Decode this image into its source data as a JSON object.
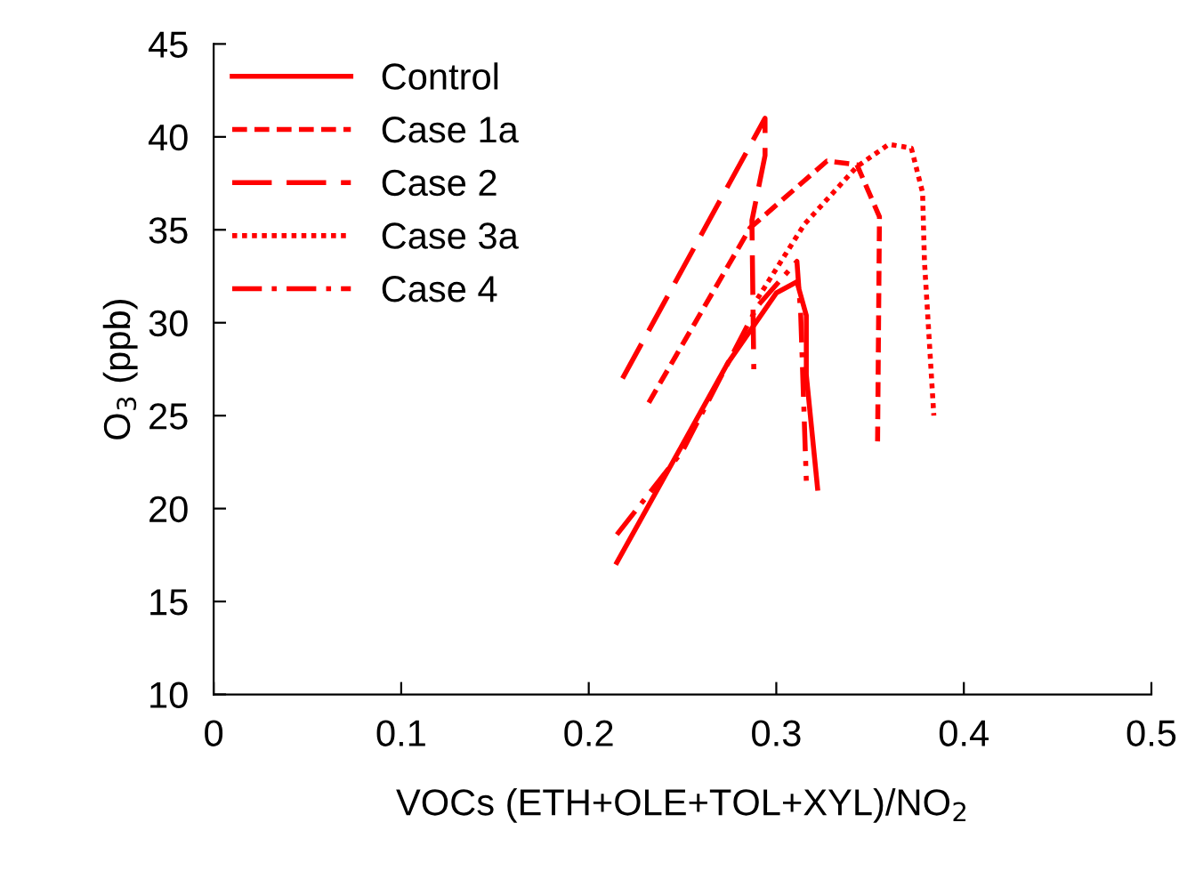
{
  "chart_data": {
    "type": "line",
    "xlabel": "VOCs (ETH+OLE+TOL+XYL)/NO$_{2}$",
    "ylabel": "O$_{3}$ (ppb)",
    "xlim": [
      0,
      0.5
    ],
    "ylim": [
      10,
      45
    ],
    "xticks": [
      0,
      0.1,
      0.2,
      0.3,
      0.4,
      0.5
    ],
    "yticks": [
      10,
      15,
      20,
      25,
      30,
      35,
      40,
      45
    ],
    "grid": false,
    "legend": "top left",
    "marker": "none",
    "series": [
      {
        "name": "Control",
        "color": "#ff0000",
        "line_style": "solid",
        "x": [
          0.215,
          0.274,
          0.3,
          0.311,
          0.316,
          0.316,
          0.322
        ],
        "values": [
          17.1,
          27.8,
          31.6,
          32.2,
          30.4,
          27.2,
          21.1
        ]
      },
      {
        "name": "Case 1a",
        "color": "#ff0000",
        "line_style": "dashed",
        "x": [
          0.232,
          0.286,
          0.327,
          0.343,
          0.355,
          0.354
        ],
        "values": [
          25.7,
          35.1,
          38.7,
          38.5,
          35.7,
          23.5
        ]
      },
      {
        "name": "Case 2",
        "color": "#ff0000",
        "line_style": "longdash",
        "x": [
          0.218,
          0.294,
          0.294,
          0.287,
          0.288
        ],
        "values": [
          27.0,
          41.0,
          39.0,
          35.5,
          27.5
        ]
      },
      {
        "name": "Case 3a",
        "color": "#ff0000",
        "line_style": "dotted",
        "x": [
          0.29,
          0.315,
          0.343,
          0.36,
          0.372,
          0.378,
          0.379,
          0.384
        ],
        "values": [
          31.3,
          35.3,
          38.4,
          39.6,
          39.4,
          37.0,
          33.3,
          25.0
        ]
      },
      {
        "name": "Case 4",
        "color": "#ff0000",
        "line_style": "dashdot",
        "x": [
          0.215,
          0.25,
          0.29,
          0.311,
          0.313,
          0.316
        ],
        "values": [
          18.6,
          23.1,
          30.9,
          33.3,
          30.5,
          21.5
        ]
      }
    ]
  }
}
